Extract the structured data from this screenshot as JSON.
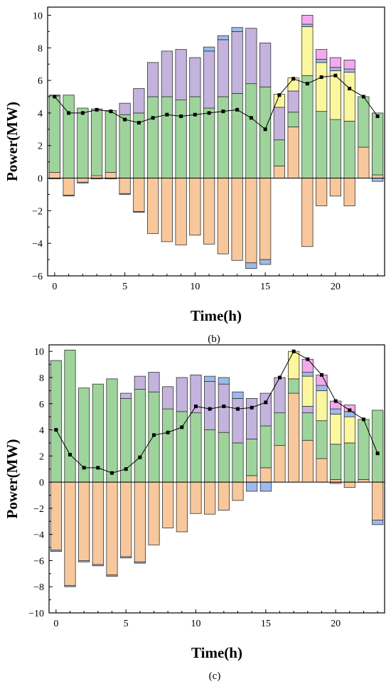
{
  "chart_data": [
    {
      "type": "bar",
      "stacked": true,
      "caption": "(b)",
      "xlabel": "Time(h)",
      "ylabel": "Power(MW)",
      "xlim": [
        -0.5,
        23.5
      ],
      "ylim": [
        -6,
        10.5
      ],
      "xticks": [
        0,
        5,
        10,
        15,
        20
      ],
      "yticks": [
        -6,
        -4,
        -2,
        0,
        2,
        4,
        6,
        8,
        10
      ],
      "x": [
        0,
        1,
        2,
        3,
        4,
        5,
        6,
        7,
        8,
        9,
        10,
        11,
        12,
        13,
        14,
        15,
        16,
        17,
        18,
        19,
        20,
        21,
        22,
        23
      ],
      "series": [
        {
          "color": "#f8c89c",
          "values": [
            0.35,
            0,
            0,
            0.15,
            0.35,
            0,
            0,
            0,
            0,
            0,
            0,
            0,
            0,
            0,
            0,
            0,
            0.75,
            3.15,
            0,
            0,
            0,
            0,
            1.9,
            0.2
          ]
        },
        {
          "color": "#9ed49b",
          "values": [
            4.7,
            5.1,
            4.3,
            4.1,
            3.8,
            3.9,
            4.0,
            5.0,
            5.0,
            4.8,
            5.0,
            4.3,
            5.0,
            5.2,
            5.8,
            5.6,
            1.6,
            0.9,
            6.3,
            4.1,
            3.6,
            3.5,
            3.1,
            3.8
          ]
        },
        {
          "color": "#c3b3dd",
          "values": [
            0,
            0,
            0,
            0,
            0,
            0.7,
            1.5,
            2.1,
            2.8,
            3.1,
            2.4,
            3.5,
            3.5,
            3.8,
            3.4,
            2.7,
            2.0,
            1.3,
            0,
            0,
            0,
            0,
            0,
            0
          ]
        },
        {
          "color": "#fbf79e",
          "values": [
            0,
            0,
            0,
            0,
            0,
            0,
            0,
            0,
            0,
            0,
            0,
            0,
            0,
            0,
            0,
            0,
            0.8,
            0.8,
            3.0,
            3.0,
            3.0,
            3.0,
            0,
            0
          ]
        },
        {
          "color": "#9cbaea",
          "values": [
            0.05,
            0,
            0,
            0,
            0,
            0,
            0,
            0,
            0,
            0,
            0,
            0.25,
            0.25,
            0.25,
            0,
            0,
            0,
            0,
            0.15,
            0.2,
            0.2,
            0.2,
            0,
            0
          ]
        },
        {
          "color": "#f4a9ef",
          "values": [
            0,
            0,
            0,
            0,
            0,
            0,
            0,
            0,
            0,
            0,
            0,
            0,
            0,
            0,
            0,
            0,
            0,
            0,
            0.55,
            0.6,
            0.6,
            0.55,
            0,
            0
          ]
        },
        {
          "color": "#f8c89c",
          "values": [
            -0.05,
            -1.05,
            -0.25,
            -0.05,
            -0.05,
            -0.95,
            -2.05,
            -3.4,
            -3.9,
            -4.1,
            -3.5,
            -4.05,
            -4.65,
            -5.05,
            -5.2,
            -5.0,
            0,
            0,
            -4.2,
            -1.7,
            -1.1,
            -1.7,
            0,
            0
          ]
        },
        {
          "color": "#9cbaea",
          "values": [
            0,
            -0.05,
            -0.05,
            0,
            0,
            -0.05,
            -0.05,
            0,
            0,
            0,
            0,
            0,
            0,
            0,
            -0.35,
            -0.3,
            0,
            0,
            0,
            0,
            0,
            0,
            0,
            -0.2
          ]
        }
      ],
      "line": {
        "color": "#000000",
        "values": [
          5.0,
          4.0,
          4.0,
          4.2,
          4.1,
          3.6,
          3.4,
          3.7,
          3.9,
          3.8,
          3.9,
          4.0,
          4.1,
          4.2,
          3.7,
          3.0,
          5.1,
          6.1,
          5.8,
          6.2,
          6.3,
          5.5,
          5.0,
          3.8
        ]
      }
    },
    {
      "type": "bar",
      "stacked": true,
      "caption": "(c)",
      "xlabel": "Time(h)",
      "ylabel": "Power(MW)",
      "xlim": [
        -0.5,
        23.5
      ],
      "ylim": [
        -10,
        10.5
      ],
      "xticks": [
        0,
        5,
        10,
        15,
        20
      ],
      "yticks": [
        -10,
        -8,
        -6,
        -4,
        -2,
        0,
        2,
        4,
        6,
        8,
        10
      ],
      "x": [
        0,
        1,
        2,
        3,
        4,
        5,
        6,
        7,
        8,
        9,
        10,
        11,
        12,
        13,
        14,
        15,
        16,
        17,
        18,
        19,
        20,
        21,
        22,
        23
      ],
      "series": [
        {
          "color": "#f8c89c",
          "values": [
            0,
            0,
            0,
            0,
            0,
            0,
            0,
            0,
            0,
            0,
            0,
            0,
            0,
            0,
            0.5,
            1.1,
            2.8,
            6.8,
            3.2,
            1.8,
            0.2,
            0,
            0.2,
            0
          ]
        },
        {
          "color": "#9ed49b",
          "values": [
            9.3,
            10.1,
            7.2,
            7.5,
            7.9,
            6.4,
            7.1,
            6.9,
            5.6,
            5.4,
            5.3,
            4.0,
            3.8,
            3.0,
            2.8,
            3.2,
            2.5,
            1.1,
            2.1,
            2.9,
            2.7,
            3.0,
            4.6,
            5.5
          ]
        },
        {
          "color": "#c3b3dd",
          "values": [
            0,
            0,
            0,
            0,
            0,
            0.4,
            1.0,
            1.5,
            1.7,
            2.6,
            2.9,
            3.7,
            3.7,
            3.4,
            3.1,
            2.5,
            2.7,
            0,
            0.5,
            0,
            0,
            0,
            0,
            0
          ]
        },
        {
          "color": "#fbf79e",
          "values": [
            0,
            0,
            0,
            0,
            0,
            0,
            0,
            0,
            0,
            0,
            0,
            0,
            0,
            0,
            0,
            0,
            0,
            2.1,
            2.3,
            2.3,
            2.3,
            2.0,
            0,
            0
          ]
        },
        {
          "color": "#9cbaea",
          "values": [
            0,
            0,
            0,
            0,
            0,
            0,
            0,
            0,
            0,
            0,
            0,
            0.4,
            0.5,
            0.5,
            0,
            0,
            0,
            0,
            0.3,
            0.4,
            0.4,
            0.4,
            0,
            0
          ]
        },
        {
          "color": "#f4a9ef",
          "values": [
            0,
            0,
            0,
            0,
            0,
            0,
            0,
            0,
            0,
            0,
            0,
            0,
            0,
            0,
            0,
            0,
            0,
            0,
            1.0,
            0.8,
            0.6,
            0.5,
            0,
            0
          ]
        },
        {
          "color": "#f8c89c",
          "values": [
            -5.2,
            -7.9,
            -6.0,
            -6.3,
            -7.1,
            -5.7,
            -6.1,
            -4.8,
            -3.5,
            -3.8,
            -2.4,
            -2.45,
            -2.15,
            -1.4,
            0,
            0,
            0,
            0,
            0,
            0,
            -0.1,
            -0.4,
            0,
            -2.9
          ]
        },
        {
          "color": "#9cbaea",
          "values": [
            -0.1,
            -0.1,
            -0.1,
            -0.1,
            -0.1,
            -0.1,
            -0.1,
            0,
            0,
            0,
            0,
            0,
            0,
            0,
            -0.7,
            -0.7,
            0,
            0,
            0,
            0,
            0,
            0,
            0,
            -0.35
          ]
        }
      ],
      "line": {
        "color": "#000000",
        "values": [
          4.0,
          2.1,
          1.1,
          1.1,
          0.7,
          1.0,
          1.9,
          3.6,
          3.8,
          4.2,
          5.8,
          5.6,
          5.8,
          5.6,
          5.7,
          6.1,
          8.0,
          10.0,
          9.4,
          8.2,
          6.2,
          5.5,
          4.8,
          2.2
        ]
      }
    }
  ]
}
